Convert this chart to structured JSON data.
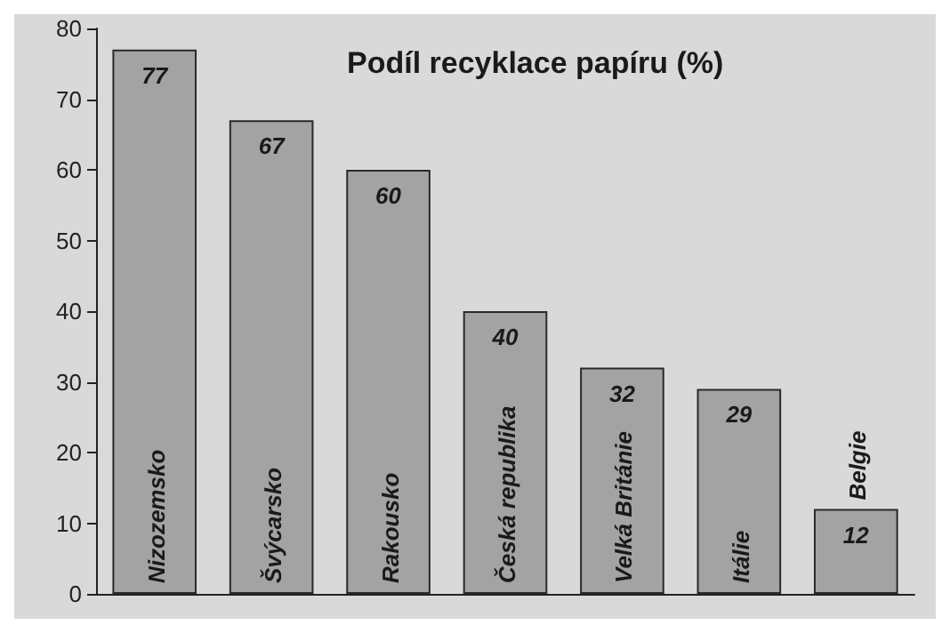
{
  "chart_data": {
    "type": "bar",
    "title": "Podíl recyklace papíru (%)",
    "categories": [
      "Nizozemsko",
      "Švýcarsko",
      "Rakousko",
      "Česká republika",
      "Velká Británie",
      "Itálie",
      "Belgie"
    ],
    "values": [
      77,
      67,
      60,
      40,
      32,
      29,
      12
    ],
    "color": "#a3a3a3",
    "ylim": [
      0,
      80
    ],
    "yticks": [
      0,
      10,
      20,
      30,
      40,
      50,
      60,
      70,
      80
    ],
    "data_labels": true
  }
}
